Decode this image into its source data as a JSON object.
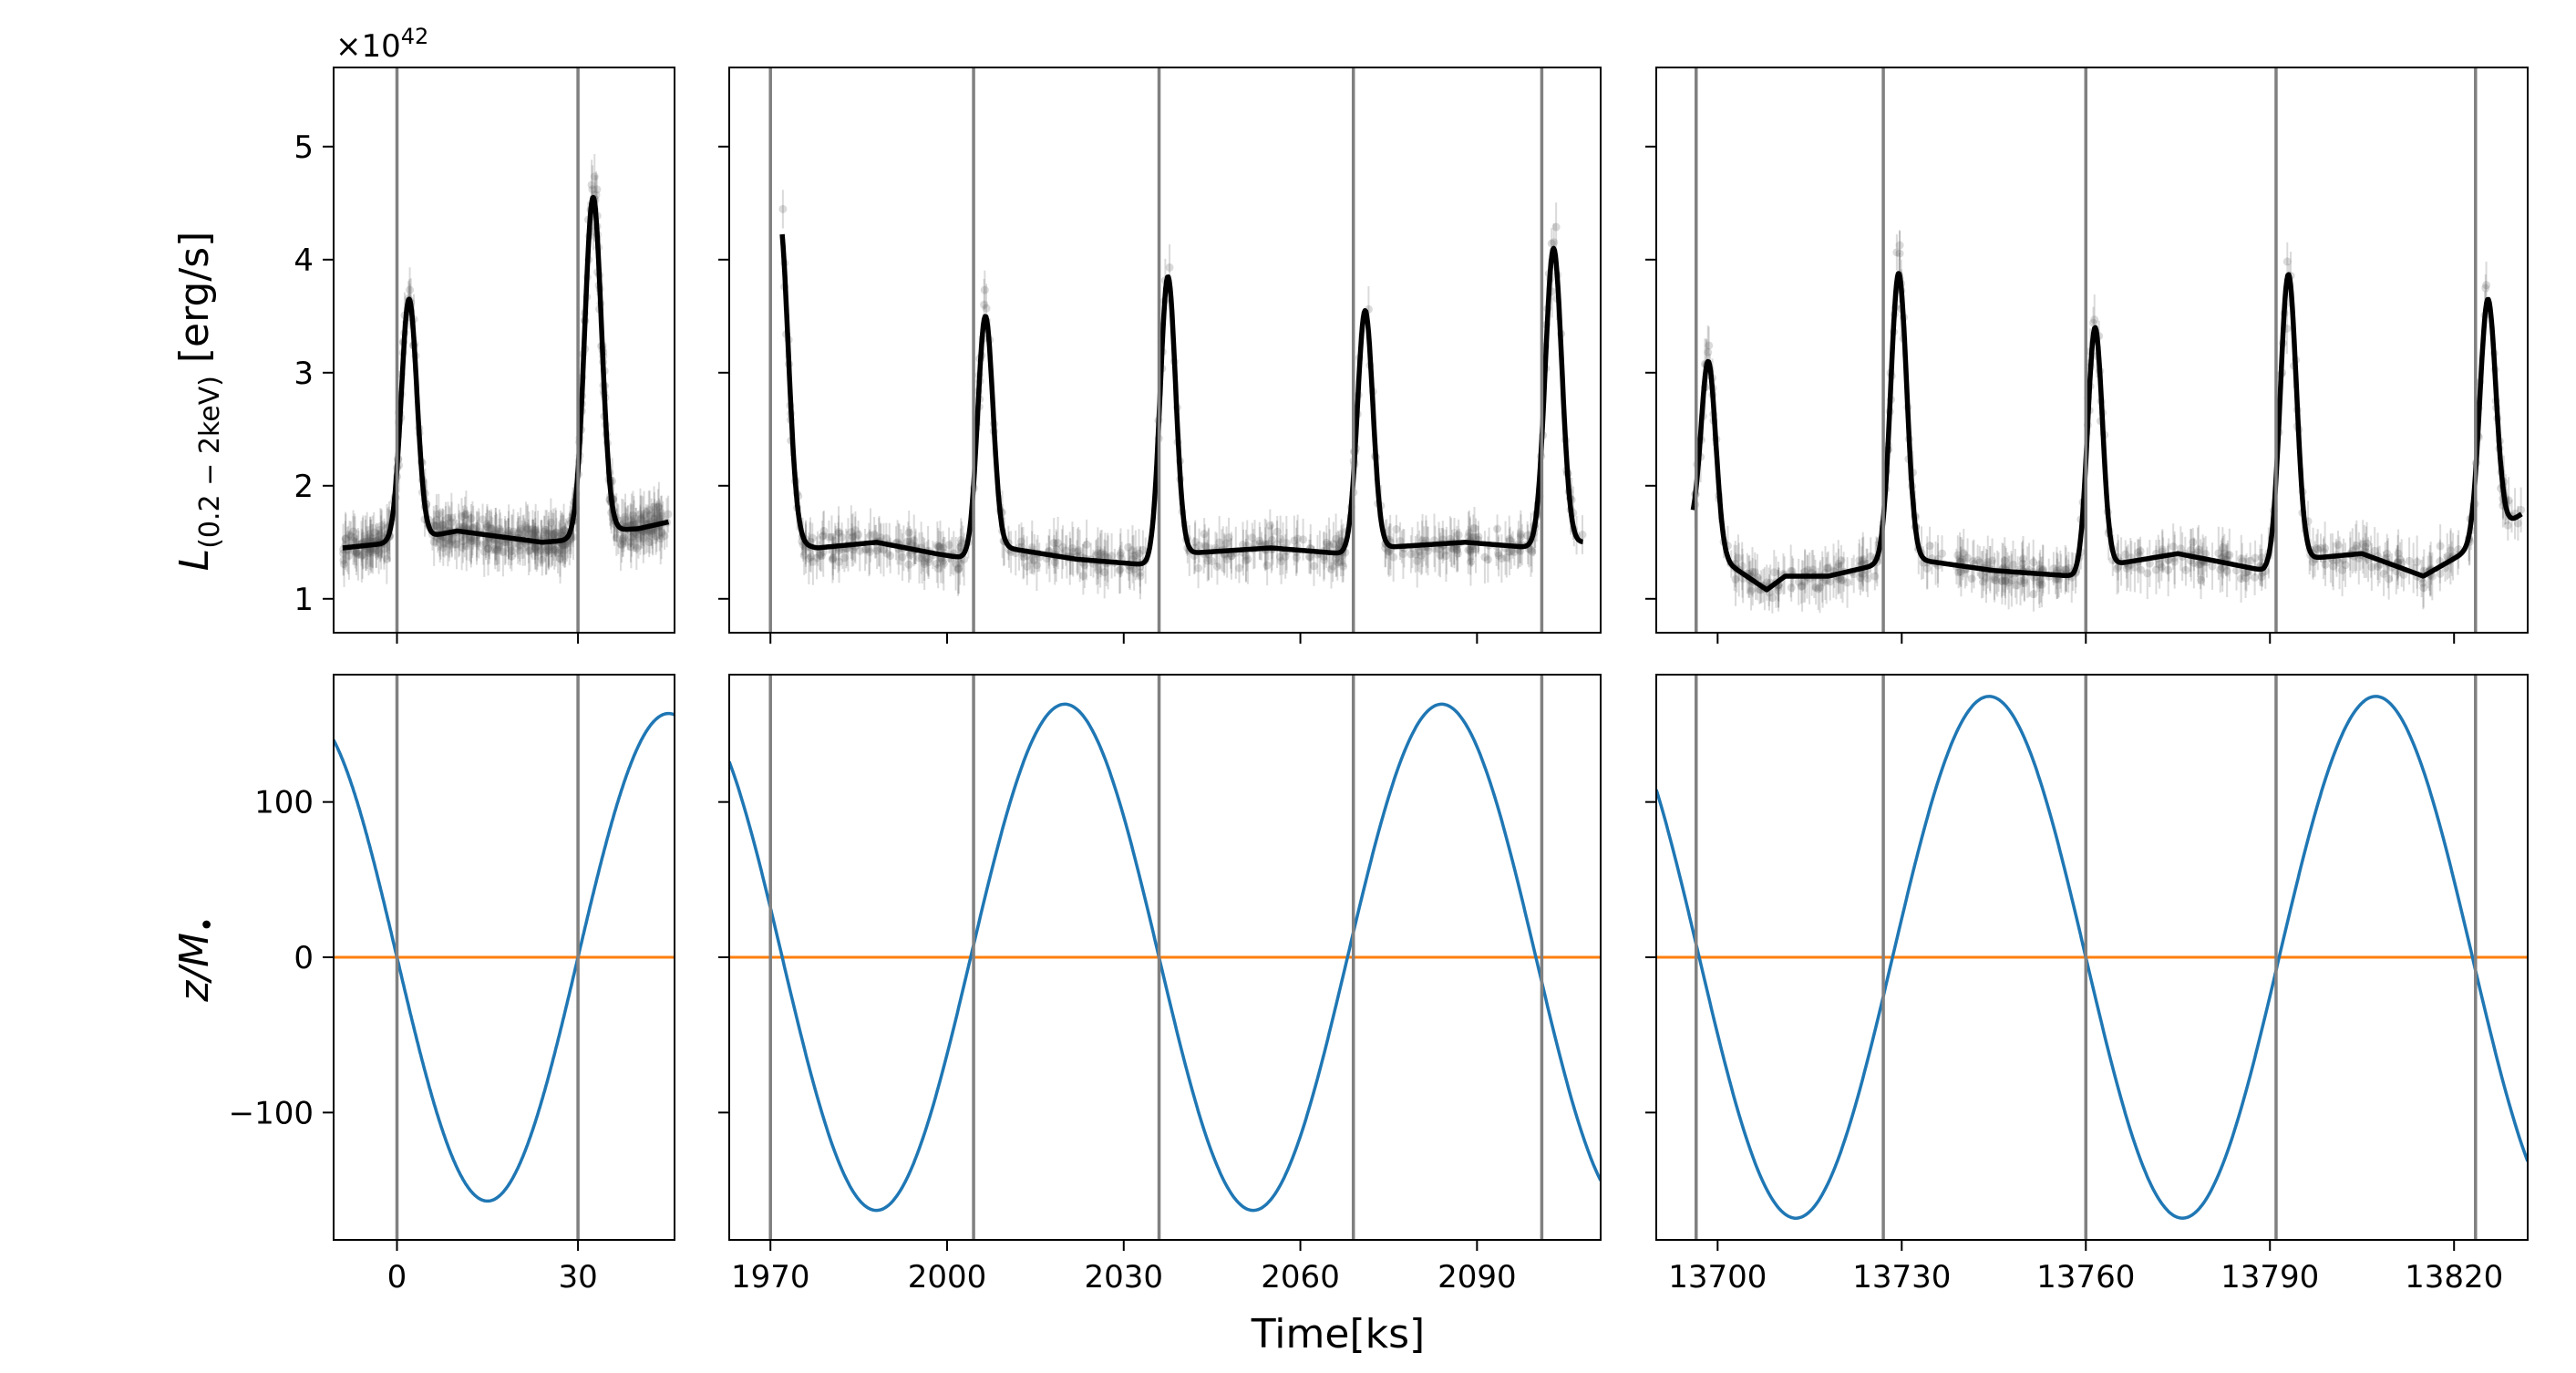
{
  "figure": {
    "xlabel": "Time[ks]",
    "offset_label": "×10",
    "offset_exponent": "42"
  },
  "colors": {
    "model_line": "#000000",
    "data_points": "#555555",
    "peak_lines": "#808080",
    "z_curve": "#1f77b4",
    "zero_line": "#ff7f0e"
  },
  "chart_data": [
    {
      "id": "top-left",
      "type": "line",
      "row": "top",
      "col": 0,
      "ylabel_main": "L",
      "ylabel_sub": "(0.2 − 2keV)",
      "ylabel_unit": " [erg/s]",
      "xlim": [
        -10.5,
        46
      ],
      "ylim": [
        0.7,
        5.7
      ],
      "yticks": [
        1,
        2,
        3,
        4,
        5
      ],
      "ytick_labels": [
        "1",
        "2",
        "3",
        "4",
        "5"
      ],
      "xticks": [
        0,
        30
      ],
      "xtick_labels": [],
      "vlines": [
        0,
        30
      ],
      "baseline": {
        "t": [
          -9,
          0,
          10,
          17,
          24,
          29,
          34,
          40,
          45
        ],
        "y": [
          1.45,
          1.5,
          1.6,
          1.55,
          1.5,
          1.52,
          1.6,
          1.62,
          1.68
        ]
      },
      "peaks": [
        {
          "t": 2,
          "height": 3.65,
          "width": 1.3
        },
        {
          "t": 32.5,
          "height": 4.55,
          "width": 1.4
        }
      ]
    },
    {
      "id": "top-middle",
      "type": "line",
      "row": "top",
      "col": 1,
      "xlim": [
        1963,
        2111
      ],
      "ylim": [
        0.7,
        5.7
      ],
      "yticks": [
        1,
        2,
        3,
        4,
        5
      ],
      "ytick_labels": [],
      "xticks": [
        1970,
        2000,
        2030,
        2060,
        2090
      ],
      "xtick_labels": [],
      "vlines": [
        1970,
        2004.5,
        2036,
        2069,
        2101
      ],
      "baseline": {
        "t": [
          1972,
          1978,
          1988,
          1998,
          2004,
          2010,
          2022,
          2034,
          2040,
          2055,
          2067,
          2073,
          2088,
          2100,
          2108
        ],
        "y": [
          1.5,
          1.45,
          1.5,
          1.4,
          1.35,
          1.45,
          1.35,
          1.3,
          1.4,
          1.45,
          1.4,
          1.45,
          1.5,
          1.45,
          1.5
        ]
      },
      "peaks": [
        {
          "t": 1971.5,
          "height": 4.38,
          "width": 1.5
        },
        {
          "t": 2006.5,
          "height": 3.5,
          "width": 1.3
        },
        {
          "t": 2037.5,
          "height": 3.85,
          "width": 1.3
        },
        {
          "t": 2071,
          "height": 3.55,
          "width": 1.3
        },
        {
          "t": 2103,
          "height": 4.1,
          "width": 1.4
        }
      ]
    },
    {
      "id": "top-right",
      "type": "line",
      "row": "top",
      "col": 2,
      "xlim": [
        13690,
        13832
      ],
      "ylim": [
        0.7,
        5.7
      ],
      "yticks": [
        1,
        2,
        3,
        4,
        5
      ],
      "ytick_labels": [],
      "xticks": [
        13700,
        13730,
        13760,
        13790,
        13820
      ],
      "xtick_labels": [],
      "vlines": [
        13696.5,
        13727,
        13760,
        13791,
        13823.5
      ],
      "baseline": {
        "t": [
          13696,
          13702,
          13708,
          13711,
          13718,
          13726,
          13732,
          13745,
          13758,
          13764,
          13775,
          13789,
          13795,
          13805,
          13815,
          13823,
          13831
        ],
        "y": [
          1.6,
          1.3,
          1.08,
          1.2,
          1.2,
          1.3,
          1.35,
          1.25,
          1.2,
          1.3,
          1.4,
          1.25,
          1.35,
          1.4,
          1.2,
          1.45,
          1.75
        ]
      },
      "peaks": [
        {
          "t": 13698.5,
          "height": 3.1,
          "width": 1.2
        },
        {
          "t": 13729.5,
          "height": 3.88,
          "width": 1.3
        },
        {
          "t": 13761.5,
          "height": 3.4,
          "width": 1.2
        },
        {
          "t": 13793,
          "height": 3.87,
          "width": 1.3
        },
        {
          "t": 13825.5,
          "height": 3.65,
          "width": 1.3
        }
      ]
    },
    {
      "id": "bottom-left",
      "type": "line",
      "row": "bottom",
      "col": 0,
      "ylabel": "z/M",
      "xlim": [
        -10.5,
        46
      ],
      "ylim": [
        -182,
        182
      ],
      "yticks": [
        100,
        0,
        -100
      ],
      "ytick_labels": [
        "100",
        "0",
        "−100"
      ],
      "xticks": [
        0,
        30
      ],
      "xtick_labels": [
        "0",
        "30"
      ],
      "vlines": [
        0,
        30
      ],
      "hline": 0,
      "sine": {
        "amplitude": 157,
        "period": 60,
        "zero_down_at": 0
      }
    },
    {
      "id": "bottom-middle",
      "type": "line",
      "row": "bottom",
      "col": 1,
      "xlim": [
        1963,
        2111
      ],
      "ylim": [
        -182,
        182
      ],
      "yticks": [
        100,
        0,
        -100
      ],
      "ytick_labels": [],
      "xticks": [
        1970,
        2000,
        2030,
        2060,
        2090
      ],
      "xtick_labels": [
        "1970",
        "2000",
        "2030",
        "2060",
        "2090"
      ],
      "vlines": [
        1970,
        2004.5,
        2036,
        2069,
        2101
      ],
      "hline": 0,
      "sine": {
        "amplitude": 163,
        "period": 64,
        "zero_down_at": 1972
      }
    },
    {
      "id": "bottom-right",
      "type": "line",
      "row": "bottom",
      "col": 2,
      "xlim": [
        13690,
        13832
      ],
      "ylim": [
        -182,
        182
      ],
      "yticks": [
        100,
        0,
        -100
      ],
      "ytick_labels": [],
      "xticks": [
        13700,
        13730,
        13760,
        13790,
        13820
      ],
      "xtick_labels": [
        "13700",
        "13730",
        "13760",
        "13790",
        "13820"
      ],
      "vlines": [
        13696.5,
        13727,
        13760,
        13791,
        13823.5
      ],
      "hline": 0,
      "sine": {
        "amplitude": 168,
        "period": 63,
        "zero_down_at": 13697
      }
    }
  ]
}
